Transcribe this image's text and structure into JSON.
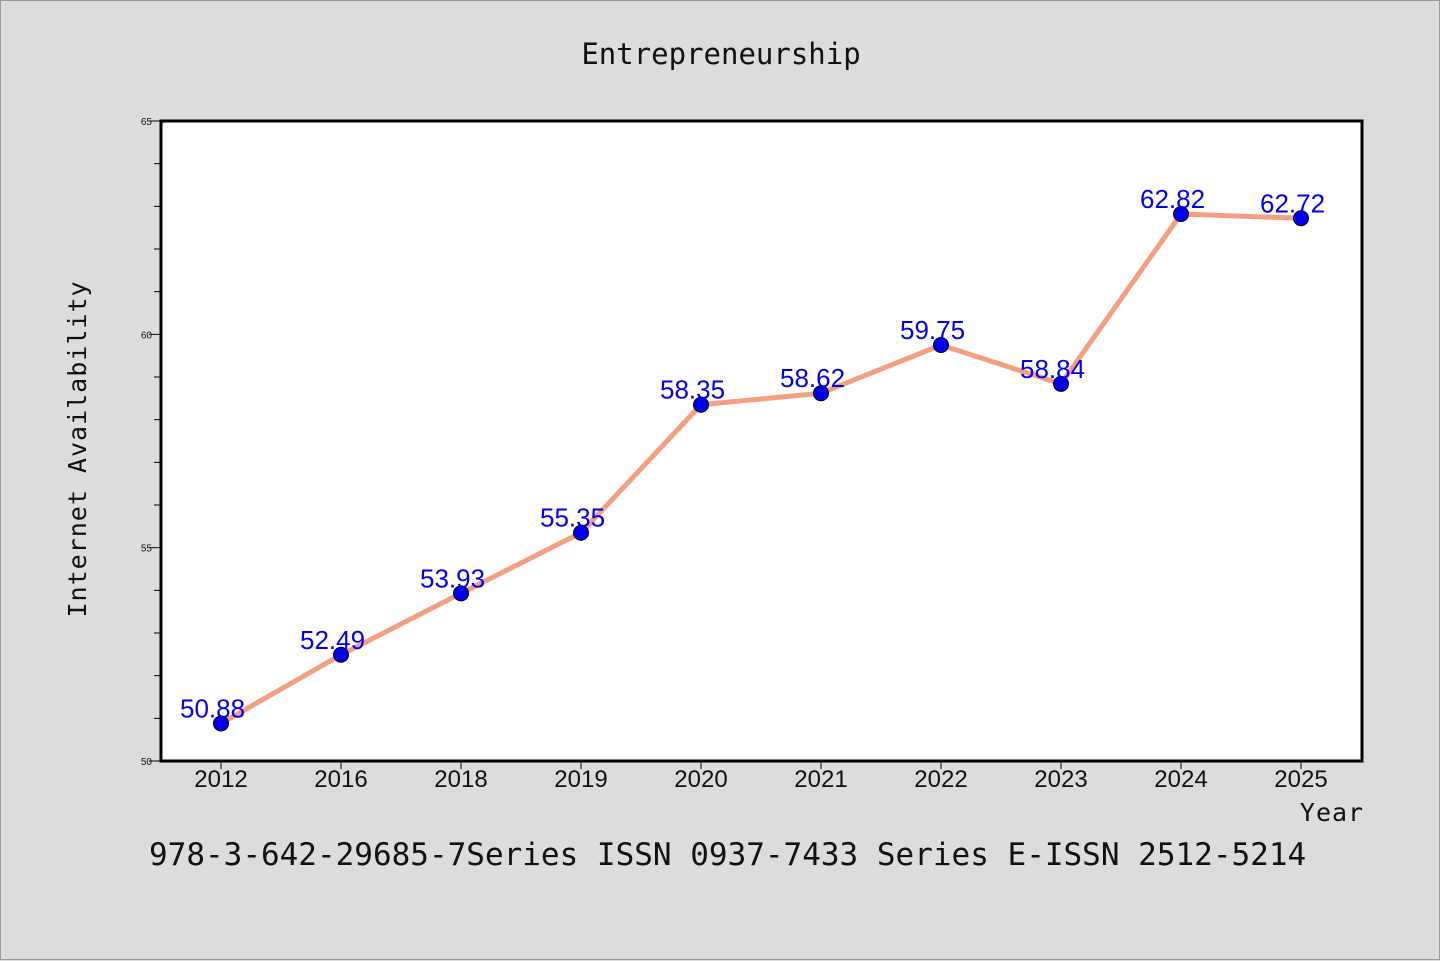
{
  "chart_data": {
    "type": "line",
    "title": "Entrepreneurship",
    "xlabel": "Year",
    "ylabel": "Internet Availability",
    "categories": [
      "2012",
      "2016",
      "2018",
      "2019",
      "2020",
      "2021",
      "2022",
      "2023",
      "2024",
      "2025"
    ],
    "series": [
      {
        "values": [
          50.88,
          52.49,
          53.93,
          55.35,
          58.35,
          58.62,
          59.75,
          58.84,
          62.82,
          62.72
        ],
        "labels": [
          "50.88",
          "52.49",
          "53.93",
          "55.35",
          "58.35",
          "58.62",
          "59.75",
          "58.84",
          "62.82",
          "62.72"
        ]
      }
    ],
    "ylim": [
      50,
      65
    ],
    "yticks": [
      50,
      55,
      60,
      65
    ],
    "ytick_labels": [
      "50",
      "55",
      "60",
      "65"
    ],
    "grid": false,
    "colors": {
      "line": "#f4a080",
      "marker": "#0000ee",
      "data_label": "#0000ee",
      "background": "#dcdcdc",
      "plot_area": "#ffffff"
    }
  },
  "footer": {
    "text": "978-3-642-29685-7Series ISSN 0937-7433 Series E-ISSN 2512-5214"
  }
}
